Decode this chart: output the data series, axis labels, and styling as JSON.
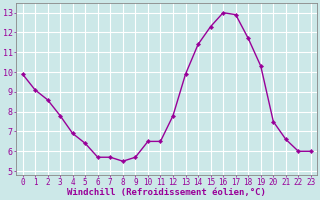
{
  "x": [
    0,
    1,
    2,
    3,
    4,
    5,
    6,
    7,
    8,
    9,
    10,
    11,
    12,
    13,
    14,
    15,
    16,
    17,
    18,
    19,
    20,
    21,
    22,
    23
  ],
  "y": [
    9.9,
    9.1,
    8.6,
    7.8,
    6.9,
    6.4,
    5.7,
    5.7,
    5.5,
    5.7,
    6.5,
    6.5,
    7.8,
    9.9,
    11.4,
    12.3,
    13.0,
    12.9,
    11.7,
    10.3,
    7.5,
    6.6,
    6.0,
    6.0
  ],
  "line_color": "#990099",
  "marker": "D",
  "marker_size": 2.2,
  "bg_color": "#cce8e8",
  "grid_color": "#ffffff",
  "xlabel": "Windchill (Refroidissement éolien,°C)",
  "xlabel_color": "#990099",
  "tick_color": "#990099",
  "ylim": [
    4.8,
    13.5
  ],
  "xlim": [
    -0.5,
    23.5
  ],
  "yticks": [
    5,
    6,
    7,
    8,
    9,
    10,
    11,
    12,
    13
  ],
  "xticks": [
    0,
    1,
    2,
    3,
    4,
    5,
    6,
    7,
    8,
    9,
    10,
    11,
    12,
    13,
    14,
    15,
    16,
    17,
    18,
    19,
    20,
    21,
    22,
    23
  ],
  "spine_color": "#888888",
  "line_width": 1.0,
  "tick_fontsize": 5.5,
  "xlabel_fontsize": 6.5,
  "ytick_fontsize": 6.0
}
